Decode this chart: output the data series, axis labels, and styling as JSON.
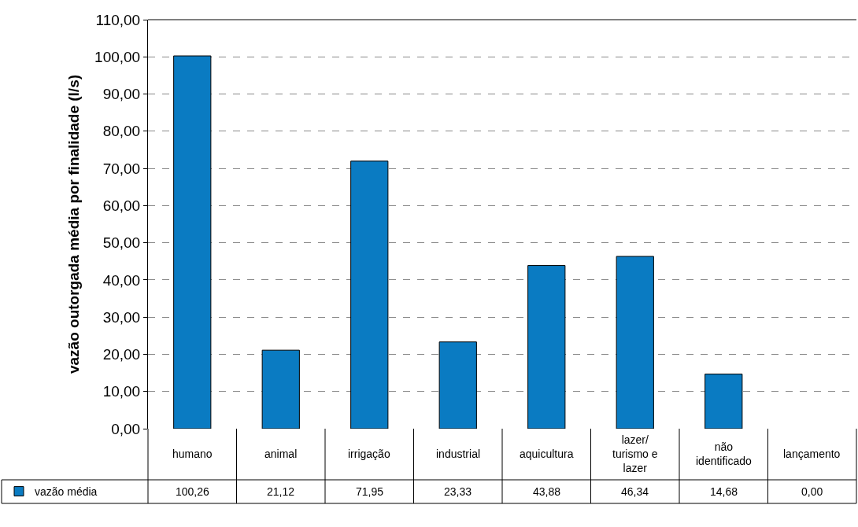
{
  "chart_data": {
    "type": "bar",
    "ylabel": "vazão outorgada média por finalidade (l/s)",
    "categories": [
      "humano",
      "animal",
      "irrigação",
      "industrial",
      "aquicultura",
      "lazer/ turismo e lazer",
      "não identificado",
      "lançamento"
    ],
    "series": [
      {
        "name": "vazão média",
        "color": "#0a7bc2",
        "values": [
          100.26,
          21.12,
          71.95,
          23.33,
          43.88,
          46.34,
          14.68,
          0.0
        ],
        "value_labels": [
          "100,26",
          "21,12",
          "71,95",
          "23,33",
          "43,88",
          "46,34",
          "14,68",
          "0,00"
        ]
      }
    ],
    "ylim": [
      0,
      110
    ],
    "yticks": [
      {
        "value": 0,
        "label": "0,00"
      },
      {
        "value": 10,
        "label": "10,00"
      },
      {
        "value": 20,
        "label": "20,00"
      },
      {
        "value": 30,
        "label": "30,00"
      },
      {
        "value": 40,
        "label": "40,00"
      },
      {
        "value": 50,
        "label": "50,00"
      },
      {
        "value": 60,
        "label": "60,00"
      },
      {
        "value": 70,
        "label": "70,00"
      },
      {
        "value": 80,
        "label": "80,00"
      },
      {
        "value": 90,
        "label": "90,00"
      },
      {
        "value": 100,
        "label": "100,00"
      },
      {
        "value": 110,
        "label": "110,00"
      }
    ],
    "grid": "y",
    "legend": "bottom left"
  }
}
